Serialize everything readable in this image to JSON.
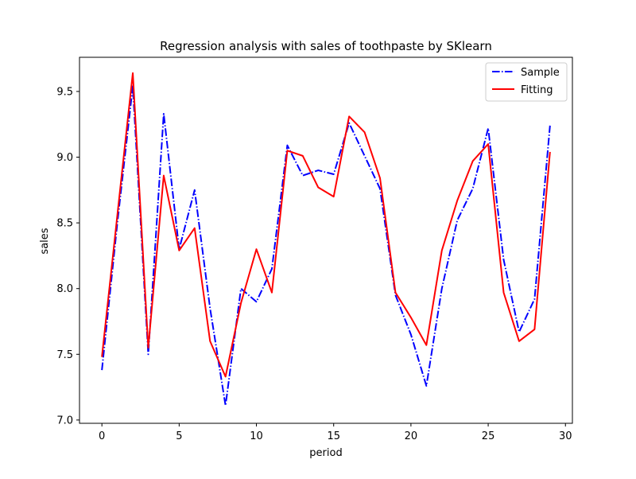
{
  "chart_data": {
    "type": "line",
    "title": "Regression analysis with sales of toothpaste by SKlearn",
    "xlabel": "period",
    "ylabel": "sales",
    "xlim": [
      -1.45,
      30.45
    ],
    "ylim": [
      6.975,
      9.76
    ],
    "xticks": [
      0,
      5,
      10,
      15,
      20,
      25,
      30
    ],
    "xtick_labels": [
      "0",
      "5",
      "10",
      "15",
      "20",
      "25",
      "30"
    ],
    "yticks": [
      7.0,
      7.5,
      8.0,
      8.5,
      9.0,
      9.5
    ],
    "ytick_labels": [
      "7.0",
      "7.5",
      "8.0",
      "8.5",
      "9.0",
      "9.5"
    ],
    "grid": false,
    "legend_position": "top-right",
    "x": [
      0,
      1,
      2,
      3,
      4,
      5,
      6,
      7,
      8,
      9,
      10,
      11,
      12,
      13,
      14,
      15,
      16,
      17,
      18,
      19,
      20,
      21,
      22,
      23,
      24,
      25,
      26,
      27,
      28,
      29
    ],
    "series": [
      {
        "name": "Sample",
        "color": "#0000ff",
        "line_style": "dashdot",
        "values": [
          7.38,
          8.5,
          9.54,
          7.5,
          9.33,
          8.3,
          8.75,
          7.85,
          7.11,
          8.0,
          7.9,
          8.15,
          9.09,
          8.86,
          8.9,
          8.87,
          9.26,
          9.01,
          8.76,
          7.95,
          7.65,
          7.26,
          8.0,
          8.52,
          8.76,
          9.22,
          8.22,
          7.67,
          7.92,
          9.24
        ]
      },
      {
        "name": "Fitting",
        "color": "#ff0000",
        "line_style": "solid",
        "values": [
          7.48,
          8.56,
          9.64,
          7.55,
          8.86,
          8.29,
          8.46,
          7.6,
          7.33,
          7.89,
          8.3,
          7.97,
          9.05,
          9.01,
          8.77,
          8.7,
          9.31,
          9.19,
          8.84,
          7.97,
          7.78,
          7.57,
          8.29,
          8.67,
          8.97,
          9.1,
          7.97,
          7.6,
          7.69,
          9.04
        ]
      }
    ]
  }
}
